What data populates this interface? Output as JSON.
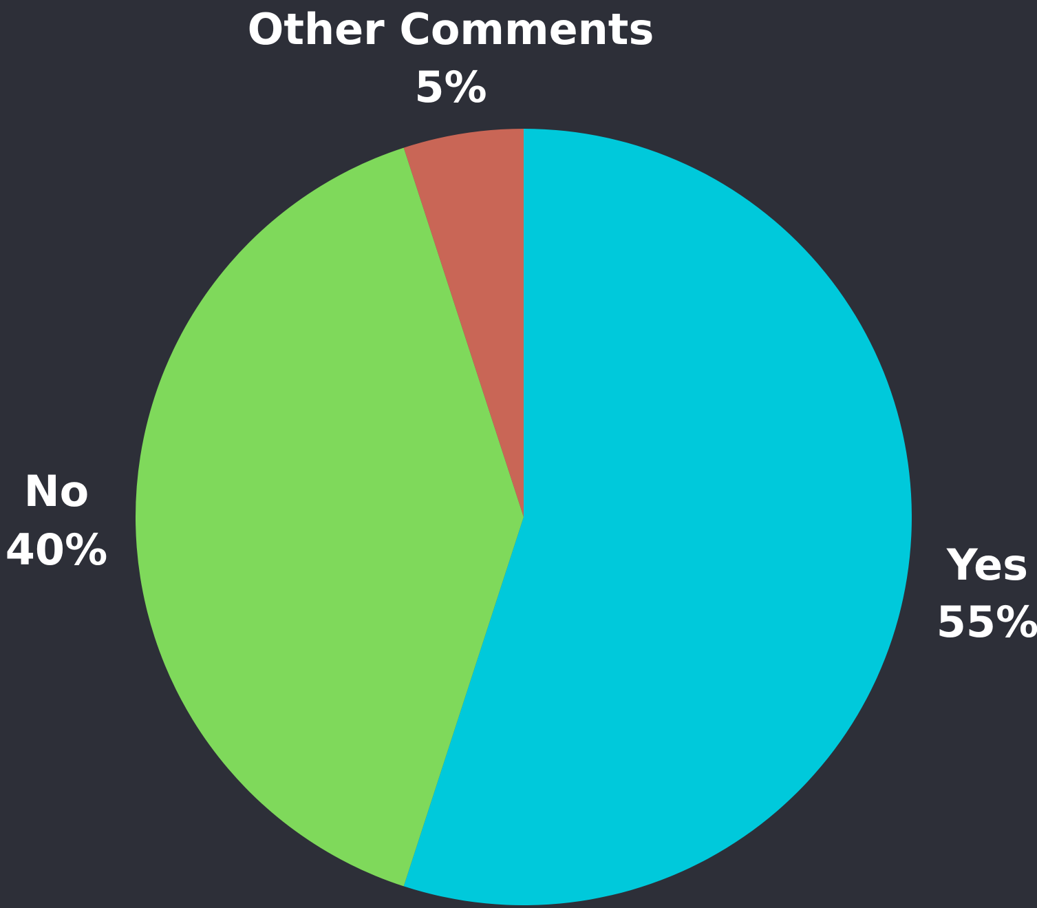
{
  "chart_data": {
    "type": "pie",
    "background": "#2d2f38",
    "slices": [
      {
        "label": "Yes",
        "value": 55,
        "value_label": "55%",
        "color": "#00c9db"
      },
      {
        "label": "No",
        "value": 40,
        "value_label": "40%",
        "color": "#7fd95b"
      },
      {
        "label": "Other Comments",
        "value": 5,
        "value_label": "5%",
        "color": "#c96656"
      }
    ]
  }
}
